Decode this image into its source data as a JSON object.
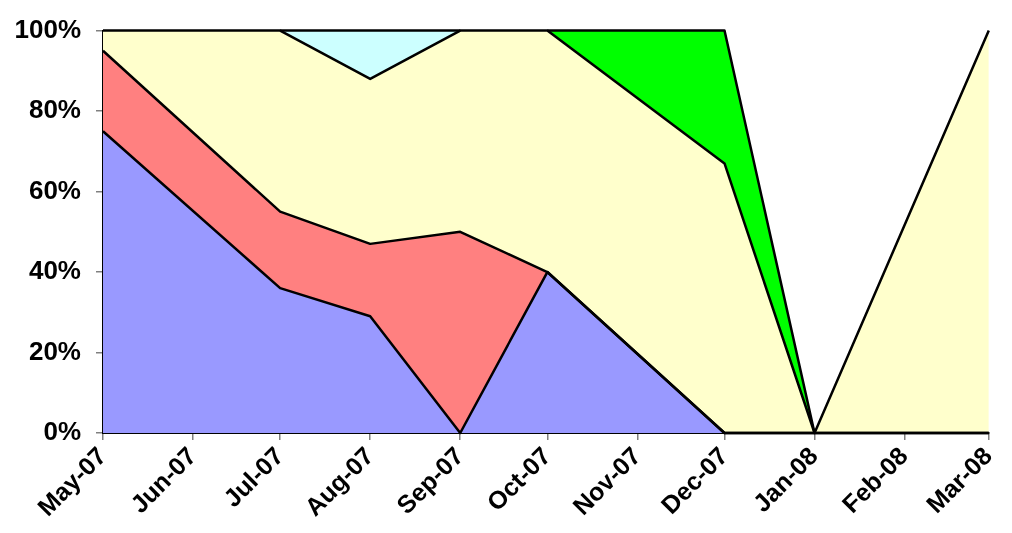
{
  "chart_data": {
    "type": "area",
    "stacked": true,
    "x": [
      "2007-05",
      "2007-07",
      "2007-08",
      "2007-09",
      "2007-10",
      "2007-12",
      "2008-01",
      "2008-03"
    ],
    "xlim": [
      "2007-05",
      "2008-03"
    ],
    "xticks": [
      {
        "value": "2007-05",
        "label": "May-07"
      },
      {
        "value": "2007-06",
        "label": "Jun-07"
      },
      {
        "value": "2007-07",
        "label": "Jul-07"
      },
      {
        "value": "2007-08",
        "label": "Aug-07"
      },
      {
        "value": "2007-09",
        "label": "Sep-07"
      },
      {
        "value": "2007-10",
        "label": "Oct-07"
      },
      {
        "value": "2007-11",
        "label": "Nov-07"
      },
      {
        "value": "2007-12",
        "label": "Dec-07"
      },
      {
        "value": "2008-01",
        "label": "Jan-08"
      },
      {
        "value": "2008-02",
        "label": "Feb-08"
      },
      {
        "value": "2008-03",
        "label": "Mar-08"
      }
    ],
    "ylim": [
      0,
      100
    ],
    "yticks": [
      {
        "value": 0,
        "label": "0%"
      },
      {
        "value": 20,
        "label": "20%"
      },
      {
        "value": 40,
        "label": "40%"
      },
      {
        "value": 60,
        "label": "60%"
      },
      {
        "value": 80,
        "label": "80%"
      },
      {
        "value": 100,
        "label": "100%"
      }
    ],
    "grid": false,
    "legend": false,
    "series": [
      {
        "color": "#9999ff",
        "values": [
          75,
          36,
          29,
          0,
          40,
          0,
          0,
          0
        ]
      },
      {
        "color": "#ff8080",
        "values": [
          20,
          19,
          18,
          50,
          0,
          0,
          0,
          0
        ]
      },
      {
        "color": "#ffffcc",
        "values": [
          5,
          45,
          41,
          50,
          60,
          67,
          0,
          100
        ]
      },
      {
        "color": "#ccffff",
        "values": [
          null,
          0,
          12,
          0,
          null,
          null,
          null,
          null
        ]
      },
      {
        "color": "#00ff00",
        "values": [
          null,
          null,
          null,
          null,
          0,
          33,
          0,
          null
        ]
      }
    ]
  }
}
